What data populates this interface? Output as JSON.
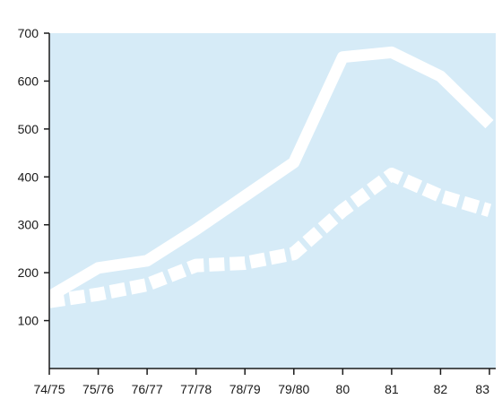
{
  "chart_data": {
    "type": "line",
    "title": "",
    "xlabel": "",
    "ylabel": "",
    "categories": [
      "74/75",
      "75/76",
      "76/77",
      "77/78",
      "78/79",
      "79/80",
      "80",
      "81",
      "82",
      "83"
    ],
    "yticks": [
      "100",
      "200",
      "300",
      "400",
      "500",
      "600",
      "700"
    ],
    "ylim": [
      0,
      700
    ],
    "grid": false,
    "legend": "none",
    "colors": {
      "plot_background": "#d6ebf7",
      "line": "#ffffff",
      "axis": "#1a1a1a"
    },
    "series": [
      {
        "style": "solid",
        "values": [
          150,
          210,
          225,
          290,
          360,
          430,
          650,
          660,
          610,
          510
        ]
      },
      {
        "style": "dashed",
        "values": [
          140,
          155,
          175,
          215,
          220,
          240,
          330,
          405,
          360,
          330
        ]
      }
    ]
  }
}
